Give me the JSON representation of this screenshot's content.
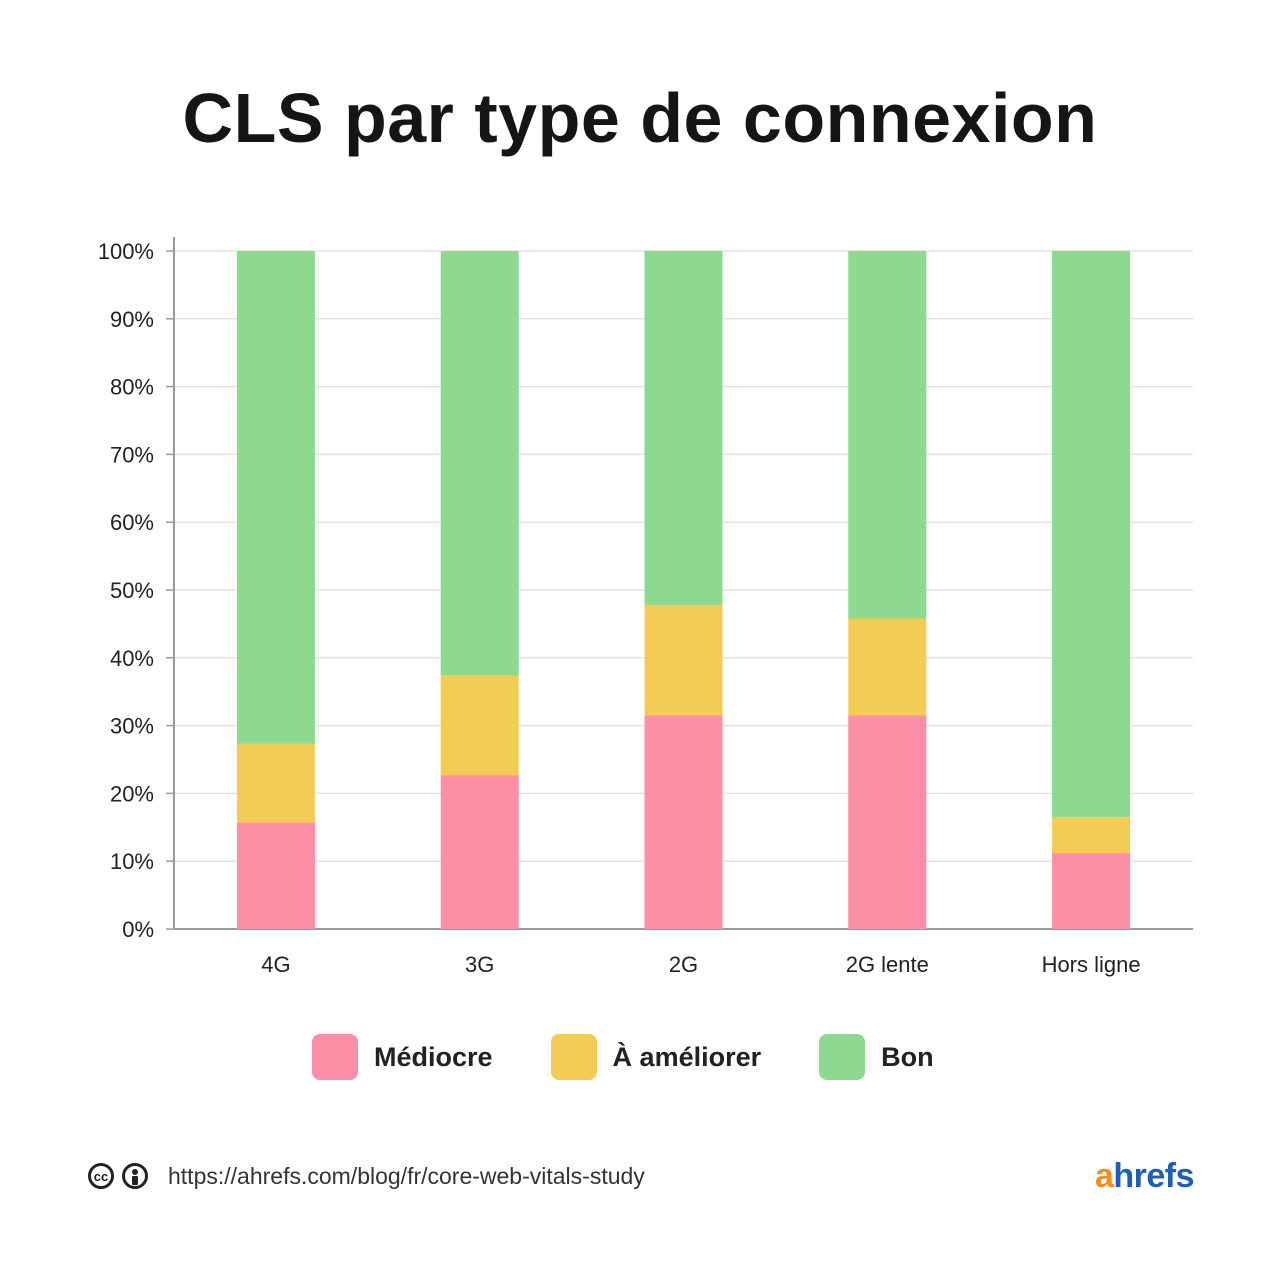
{
  "title": "CLS par type de connexion",
  "chart_data": {
    "type": "bar",
    "stacked": true,
    "title": "CLS par type de connexion",
    "categories": [
      "4G",
      "3G",
      "2G",
      "2G lente",
      "Hors ligne"
    ],
    "series": [
      {
        "name": "Médiocre",
        "color": "#fb8fa5",
        "values": [
          15.7,
          22.7,
          31.5,
          31.5,
          11.2
        ]
      },
      {
        "name": "À améliorer",
        "color": "#f2cc55",
        "values": [
          11.6,
          14.7,
          16.3,
          14.3,
          5.3
        ]
      },
      {
        "name": "Bon",
        "color": "#8dd98f",
        "values": [
          72.7,
          62.6,
          52.2,
          54.2,
          83.5
        ]
      }
    ],
    "yticks": [
      "0%",
      "10%",
      "20%",
      "30%",
      "40%",
      "50%",
      "60%",
      "70%",
      "80%",
      "90%",
      "100%"
    ],
    "ylim": [
      0,
      100
    ],
    "xlabel": "",
    "ylabel": "",
    "grid": true,
    "legend_position": "bottom"
  },
  "legend": [
    {
      "label": "Médiocre",
      "color": "#fb8fa5"
    },
    {
      "label": "À améliorer",
      "color": "#f2cc55"
    },
    {
      "label": "Bon",
      "color": "#8dd98f"
    }
  ],
  "footer": {
    "cc_icon": "cc-icon",
    "by_icon": "by-icon",
    "url": "https://ahrefs.com/blog/fr/core-web-vitals-study",
    "brand_a": "a",
    "brand_rest": "hrefs"
  }
}
